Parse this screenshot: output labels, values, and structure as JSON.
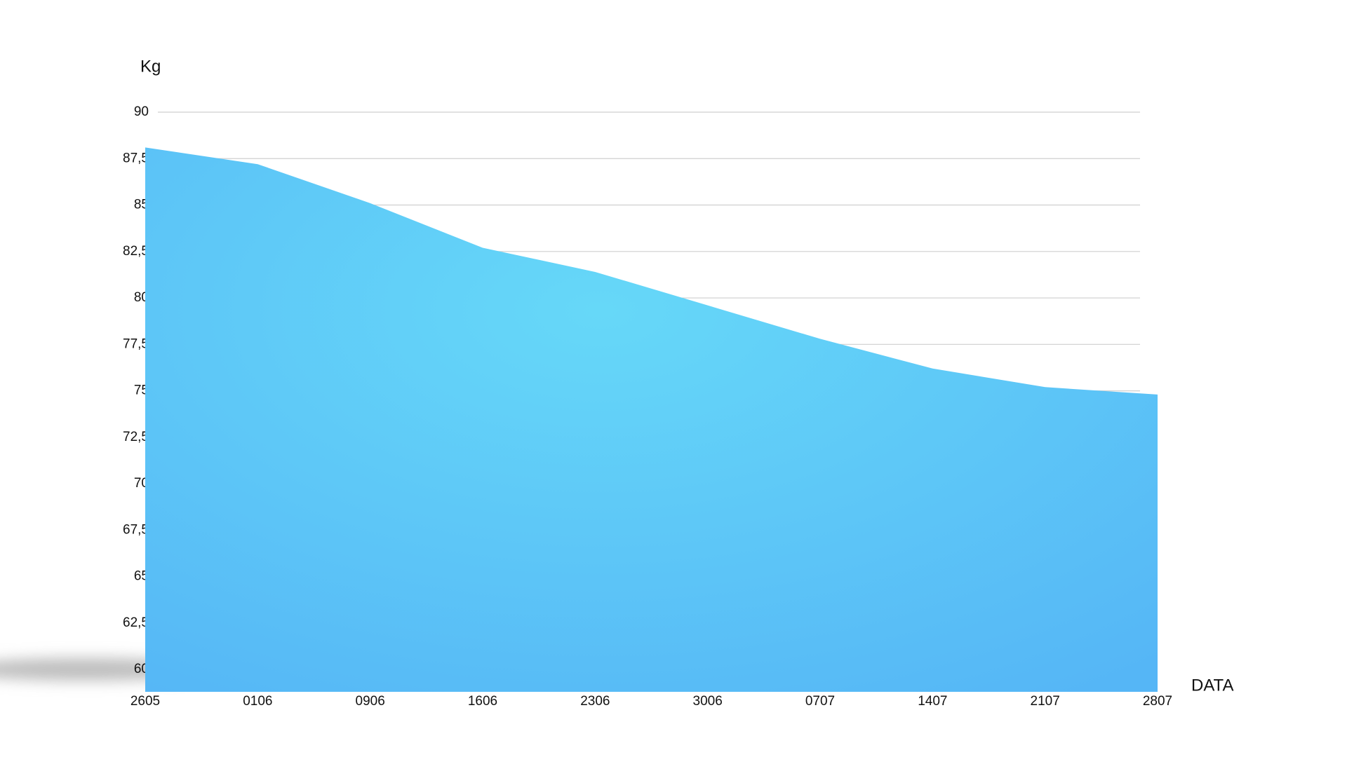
{
  "chart_data": {
    "type": "area",
    "y_label": "Kg",
    "x_label": "DATA",
    "categories": [
      "2605",
      "0106",
      "0906",
      "1606",
      "2306",
      "3006",
      "0707",
      "1407",
      "2107",
      "2807"
    ],
    "values": [
      88.1,
      87.2,
      85.1,
      82.7,
      81.4,
      79.6,
      77.8,
      76.2,
      75.2,
      74.8
    ],
    "color": "#66d8f8",
    "ylim": [
      58.8,
      90
    ],
    "yticks": [
      60,
      {
        "value": 62.5,
        "label": "62,5"
      },
      65,
      {
        "value": 67.5,
        "label": "67,5"
      },
      70,
      {
        "value": 72.5,
        "label": "72,5"
      },
      75,
      {
        "value": 77.5,
        "label": "77,5"
      },
      80,
      {
        "value": 82.5,
        "label": "82,5"
      },
      85,
      {
        "value": 87.5,
        "label": "87,5"
      },
      90
    ],
    "grid": true
  }
}
